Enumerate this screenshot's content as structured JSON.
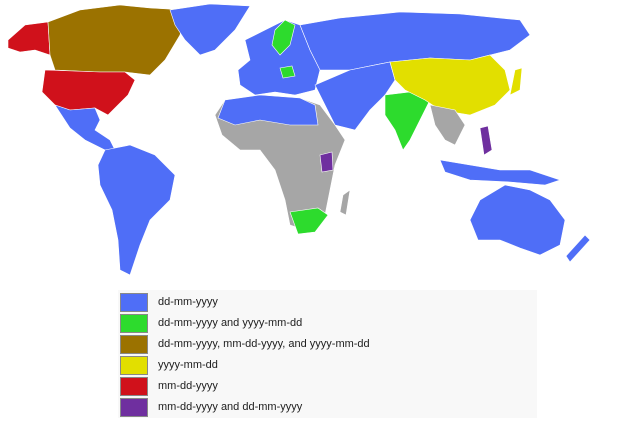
{
  "colors": {
    "dd_mm_yyyy": "#4f6ef7",
    "dd_mm_yyyy_and_yyyy_mm_dd": "#2ddb2d",
    "all_three": "#9b7200",
    "yyyy_mm_dd": "#e2df00",
    "mm_dd_yyyy": "#d0111b",
    "mm_dd_yyyy_and_dd_mm_yyyy": "#6f2f9f",
    "no_data": "#a6a6a6"
  },
  "legend": {
    "items": [
      {
        "label": "dd-mm-yyyy",
        "color": "#4f6ef7"
      },
      {
        "label": "dd-mm-yyyy and yyyy-mm-dd",
        "color": "#2ddb2d"
      },
      {
        "label": "dd-mm-yyyy, mm-dd-yyyy, and yyyy-mm-dd",
        "color": "#9b7200"
      },
      {
        "label": "yyyy-mm-dd",
        "color": "#e2df00"
      },
      {
        "label": "mm-dd-yyyy",
        "color": "#d0111b"
      },
      {
        "label": "mm-dd-yyyy and dd-mm-yyyy",
        "color": "#6f2f9f"
      }
    ]
  }
}
